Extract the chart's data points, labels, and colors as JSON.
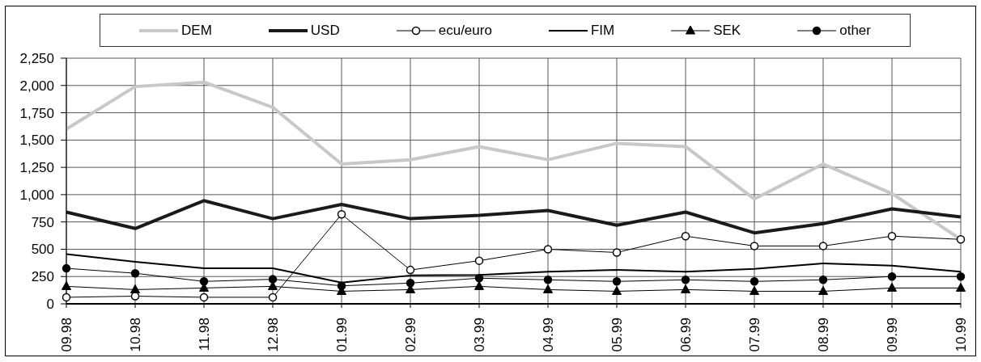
{
  "chart_data": {
    "type": "line",
    "categories": [
      "09.98",
      "10.98",
      "11.98",
      "12.98",
      "01.99",
      "02.99",
      "03.99",
      "04.99",
      "05.99",
      "06.99",
      "07.99",
      "08.99",
      "09.99",
      "10.99"
    ],
    "series": [
      {
        "name": "DEM",
        "color": "#c8c8c8",
        "marker": "none",
        "values": [
          1600,
          1990,
          2030,
          1800,
          1280,
          1320,
          1440,
          1320,
          1470,
          1440,
          960,
          1280,
          1010,
          590
        ]
      },
      {
        "name": "USD",
        "color": "#1a1a1a",
        "marker": "none",
        "values": [
          840,
          690,
          945,
          780,
          910,
          780,
          810,
          855,
          720,
          840,
          650,
          735,
          870,
          795
        ]
      },
      {
        "name": "ecu/euro",
        "color": "#000000",
        "marker": "circle",
        "values": [
          60,
          70,
          60,
          60,
          820,
          310,
          395,
          500,
          470,
          620,
          530,
          530,
          620,
          590
        ]
      },
      {
        "name": "FIM",
        "color": "#000000",
        "marker": "none",
        "values": [
          455,
          385,
          325,
          325,
          195,
          260,
          265,
          295,
          310,
          295,
          320,
          370,
          350,
          295
        ]
      },
      {
        "name": "SEK",
        "color": "#000000",
        "marker": "triangle",
        "values": [
          160,
          130,
          145,
          160,
          115,
          130,
          160,
          130,
          115,
          130,
          115,
          115,
          145,
          145
        ]
      },
      {
        "name": "other",
        "color": "#000000",
        "marker": "circle",
        "values": [
          325,
          280,
          205,
          225,
          165,
          190,
          235,
          220,
          205,
          220,
          205,
          220,
          250,
          250
        ]
      }
    ],
    "ylim": [
      0,
      2250
    ],
    "yticks": [
      0,
      250,
      500,
      750,
      {
        "value": 1000,
        "label": "1,000"
      },
      {
        "value": 1250,
        "label": "1,250"
      },
      {
        "value": 1500,
        "label": "1,500"
      },
      {
        "value": 1750,
        "label": "1,750"
      },
      {
        "value": 2000,
        "label": "2,000"
      },
      {
        "value": 2250,
        "label": "2,250"
      }
    ],
    "grid": true,
    "legend": "top"
  }
}
